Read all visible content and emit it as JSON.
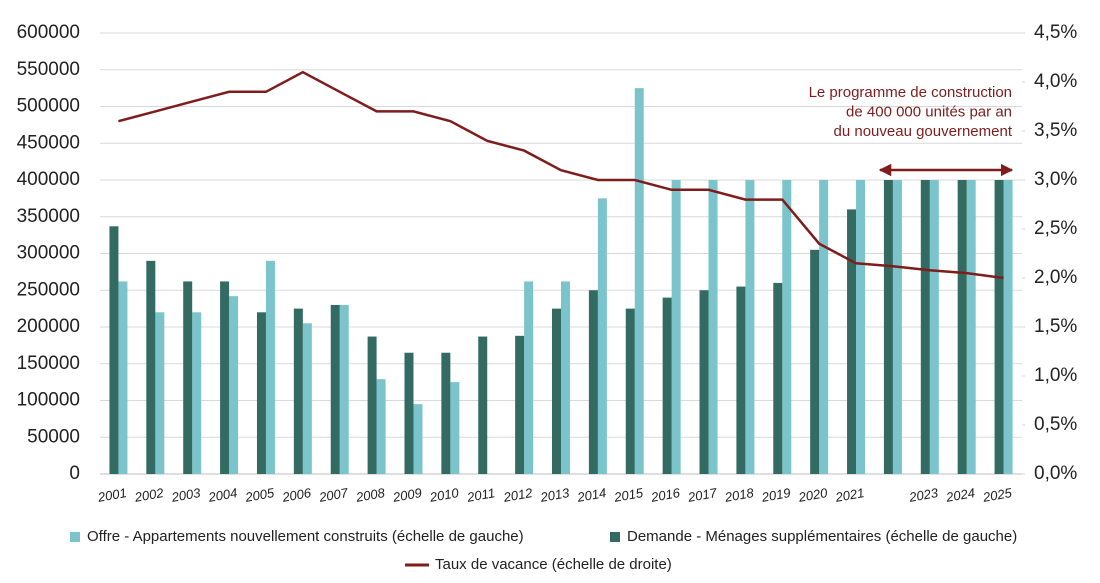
{
  "chart_data": {
    "type": "bar",
    "categories": [
      "2001",
      "2002",
      "2003",
      "2004",
      "2005",
      "2006",
      "2007",
      "2008",
      "2009",
      "2010",
      "2011",
      "2012",
      "2013",
      "2014",
      "2015",
      "2016",
      "2017",
      "2018",
      "2019",
      "2020",
      "2021",
      null,
      "2023",
      "2024",
      "2025"
    ],
    "series": [
      {
        "name": "Offre - Appartements nouvellement construits (échelle de gauche)",
        "type": "bar",
        "color": "#7bc4cc",
        "values": [
          262000,
          220000,
          220000,
          242000,
          290000,
          205000,
          230000,
          129000,
          95000,
          125000,
          null,
          262000,
          262000,
          375000,
          525000,
          400000,
          400000,
          400000,
          400000,
          400000,
          400000,
          400000,
          400000,
          400000,
          400000
        ]
      },
      {
        "name": "Demande - Ménages supplémentaires (échelle de gauche)",
        "type": "bar",
        "color": "#336b63",
        "values": [
          337000,
          290000,
          262000,
          262000,
          220000,
          225000,
          230000,
          187000,
          165000,
          165000,
          187000,
          188000,
          225000,
          250000,
          225000,
          240000,
          250000,
          255000,
          260000,
          305000,
          360000,
          400000,
          400000,
          400000,
          400000
        ]
      },
      {
        "name": "Taux de vacance (échelle de droite)",
        "type": "line",
        "axis": "y2",
        "color": "#7f1d1d",
        "values": [
          3.6,
          3.7,
          3.8,
          3.9,
          3.9,
          4.1,
          3.9,
          3.7,
          3.7,
          3.6,
          3.4,
          3.3,
          3.1,
          3.0,
          3.0,
          2.9,
          2.9,
          2.8,
          2.8,
          2.35,
          2.15,
          2.12,
          2.08,
          2.05,
          2.0
        ]
      }
    ],
    "ylim": [
      0,
      600000
    ],
    "yticks": [
      0,
      50000,
      100000,
      150000,
      200000,
      250000,
      300000,
      350000,
      400000,
      450000,
      500000,
      550000,
      600000
    ],
    "y2lim": [
      0,
      4.5
    ],
    "y2ticks": [
      {
        "value": 0,
        "label": "0,0%"
      },
      {
        "value": 0.5,
        "label": "0,5%"
      },
      {
        "value": 1,
        "label": "1,0%"
      },
      {
        "value": 1.5,
        "label": "1,5%"
      },
      {
        "value": 2,
        "label": "2,0%"
      },
      {
        "value": 2.5,
        "label": "2,5%"
      },
      {
        "value": 3,
        "label": "3,0%"
      },
      {
        "value": 3.5,
        "label": "3,5%"
      },
      {
        "value": 4,
        "label": "4,0%"
      },
      {
        "value": 4.5,
        "label": "4,5%"
      }
    ],
    "grid": true,
    "annotation": {
      "lines": [
        "Le programme de construction",
        "de 400 000 unités par an",
        "du nouveau gouvernement"
      ]
    }
  }
}
